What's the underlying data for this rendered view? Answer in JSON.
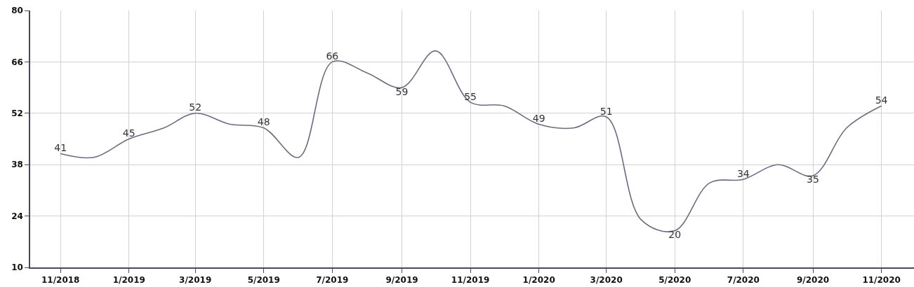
{
  "chart_data": {
    "type": "line",
    "x": [
      "2018-11",
      "2018-12",
      "2019-01",
      "2019-02",
      "2019-03",
      "2019-04",
      "2019-05",
      "2019-06",
      "2019-07",
      "2019-08",
      "2019-09",
      "2019-10",
      "2019-11",
      "2019-12",
      "2020-01",
      "2020-02",
      "2020-03",
      "2020-04",
      "2020-05",
      "2020-06",
      "2020-07",
      "2020-08",
      "2020-09",
      "2020-10",
      "2020-11"
    ],
    "values": [
      41,
      40,
      45,
      48,
      52,
      49,
      48,
      40,
      66,
      63,
      59,
      69,
      55,
      54,
      49,
      48,
      51,
      23,
      20,
      33,
      34,
      38,
      35,
      48,
      54
    ],
    "value_labels": [
      "41",
      null,
      "45",
      null,
      "52",
      null,
      "48",
      null,
      "66",
      null,
      "59",
      null,
      "55",
      null,
      "49",
      null,
      "51",
      null,
      "20",
      null,
      "34",
      null,
      "35",
      null,
      "54"
    ],
    "color": "#6e6a86",
    "line_style": "solid",
    "xlim": [
      "2018-10-05",
      "2020-11-30"
    ],
    "xticks": [
      {
        "value": "2018-11",
        "label": "11/2018"
      },
      {
        "value": "2019-01",
        "label": "1/2019"
      },
      {
        "value": "2019-03",
        "label": "3/2019"
      },
      {
        "value": "2019-05",
        "label": "5/2019"
      },
      {
        "value": "2019-07",
        "label": "7/2019"
      },
      {
        "value": "2019-09",
        "label": "9/2019"
      },
      {
        "value": "2019-11",
        "label": "11/2019"
      },
      {
        "value": "2020-01",
        "label": "1/2020"
      },
      {
        "value": "2020-03",
        "label": "3/2020"
      },
      {
        "value": "2020-05",
        "label": "5/2020"
      },
      {
        "value": "2020-07",
        "label": "7/2020"
      },
      {
        "value": "2020-09",
        "label": "9/2020"
      },
      {
        "value": "2020-11",
        "label": "11/2020"
      }
    ],
    "ylim": [
      10,
      80
    ],
    "yticks": [
      10,
      24,
      38,
      52,
      66,
      80
    ],
    "grid": true
  }
}
